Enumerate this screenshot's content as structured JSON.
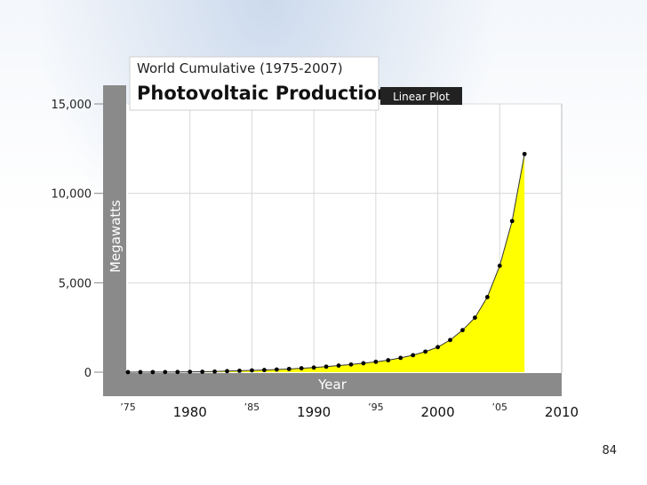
{
  "slide": {
    "page_number": "84"
  },
  "colors": {
    "fill": "#ffff00",
    "frame": "#8a8a8a",
    "marker": "#000000",
    "badge": "#222222"
  },
  "chart_data": {
    "type": "area",
    "title": "Photovoltaic Production",
    "subtitle": "World Cumulative (1975-2007)",
    "badge": "Linear Plot",
    "xlabel": "Year",
    "ylabel": "Megawatts",
    "xlim": [
      1975,
      2010
    ],
    "ylim": [
      0,
      15000
    ],
    "grid": true,
    "y_ticks": [
      {
        "value": 0,
        "label": "0"
      },
      {
        "value": 5000,
        "label": "5,000"
      },
      {
        "value": 10000,
        "label": "10,000"
      },
      {
        "value": 15000,
        "label": "15,000"
      }
    ],
    "x_ticks_major": [
      {
        "value": 1980,
        "label": "1980"
      },
      {
        "value": 1990,
        "label": "1990"
      },
      {
        "value": 2000,
        "label": "2000"
      },
      {
        "value": 2010,
        "label": "2010"
      }
    ],
    "x_ticks_minor": [
      {
        "value": 1975,
        "label": "’75"
      },
      {
        "value": 1985,
        "label": "’85"
      },
      {
        "value": 1995,
        "label": "’95"
      },
      {
        "value": 2005,
        "label": "’05"
      }
    ],
    "series": [
      {
        "x": [
          1975,
          1976,
          1977,
          1978,
          1979,
          1980,
          1981,
          1982,
          1983,
          1984,
          1985,
          1986,
          1987,
          1988,
          1989,
          1990,
          1991,
          1992,
          1993,
          1994,
          1995,
          1996,
          1997,
          1998,
          1999,
          2000,
          2001,
          2002,
          2003,
          2004,
          2005,
          2006,
          2007
        ],
        "values": [
          2,
          4,
          6,
          8,
          12,
          20,
          25,
          35,
          60,
          80,
          100,
          120,
          150,
          180,
          220,
          260,
          310,
          370,
          430,
          500,
          580,
          670,
          800,
          950,
          1150,
          1400,
          1800,
          2350,
          3050,
          4200,
          5950,
          8450,
          12200
        ]
      }
    ]
  }
}
